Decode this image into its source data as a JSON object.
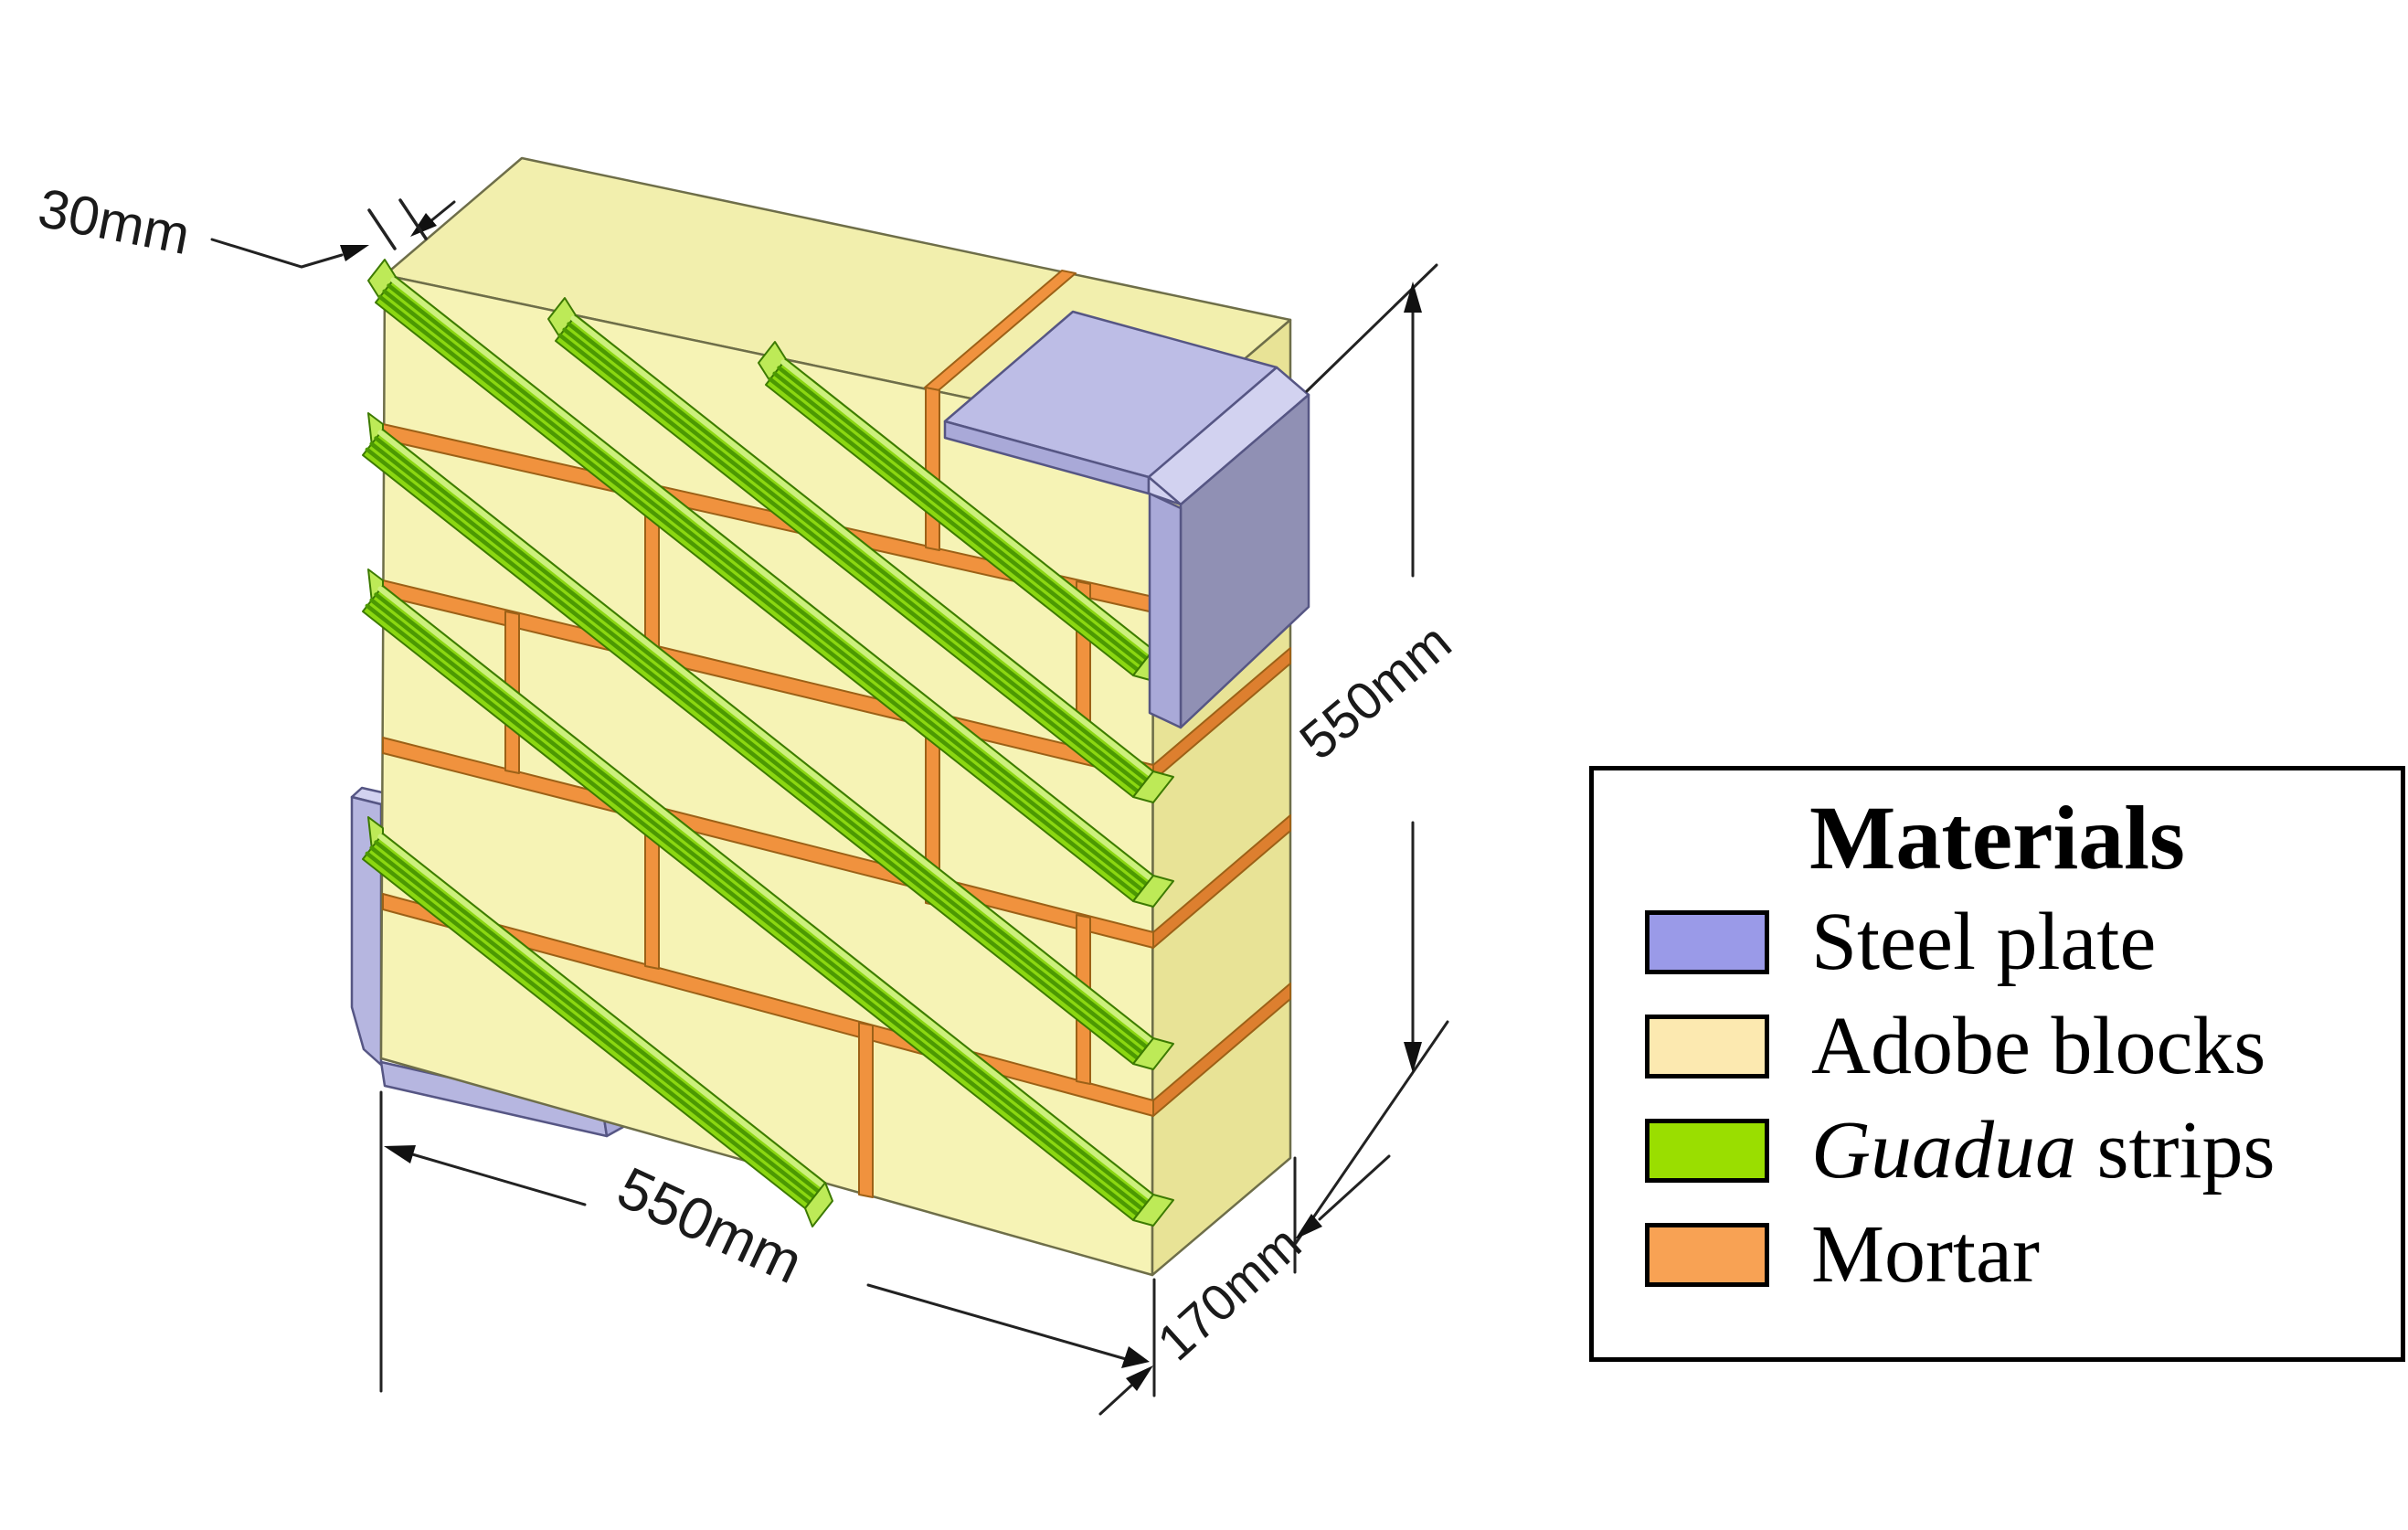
{
  "annotations": {
    "strip_width": "30mm",
    "height": "550mm",
    "width": "550mm",
    "depth": "170mm"
  },
  "legend": {
    "title": "Materials",
    "items": [
      {
        "em": "",
        "text": "Steel plate",
        "color": "#9a9ae8"
      },
      {
        "em": "",
        "text": "Adobe blocks",
        "color": "#fce9b0"
      },
      {
        "em": "Guadua",
        "text": " strips",
        "color": "#9ade00"
      },
      {
        "em": "",
        "text": "Mortar",
        "color": "#f8a254"
      }
    ]
  },
  "materials": {
    "steel_top": "#bdbde6",
    "steel_light": "#d2d2f0",
    "steel_flange": "#a9a9d8",
    "steel_side": "#9090b4",
    "steel_leg": "#b6b6e0",
    "steel_outline": "#565684",
    "adobe_front": "#f6f3b5",
    "adobe_top": "#f2efad",
    "adobe_side": "#e8e396",
    "adobe_outline": "#6e6e49",
    "guadua": "#8bd711",
    "guadua_light": "#bdea57",
    "guadua_highlight": "#ccf07d",
    "guadua_dark": "#4c9902",
    "guadua_outline": "#3c7a00",
    "mortar": "#f0923e",
    "mortar_side": "#dd7f2f",
    "mortar_outline": "#9c6117"
  }
}
